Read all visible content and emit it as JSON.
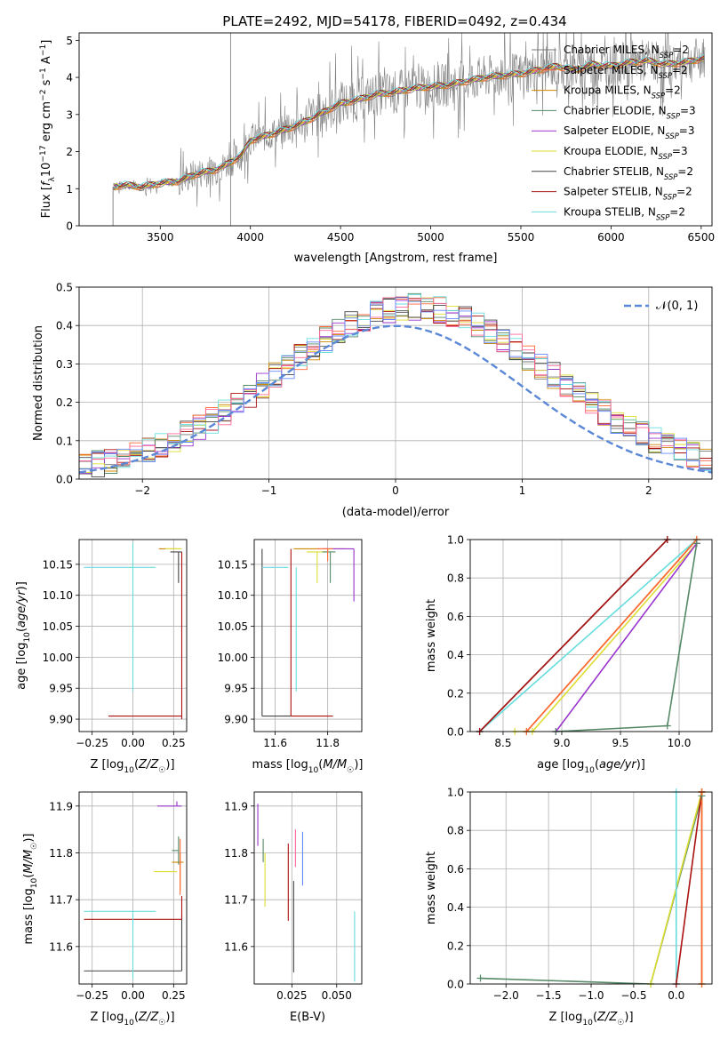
{
  "figure_title": "PLATE=2492, MJD=54178, FIBERID=0492, z=0.434",
  "model_colors": [
    "#777777",
    "#ff6633",
    "#cc8800",
    "#558866",
    "#9933cc",
    "#dddd33",
    "#444444",
    "#aa1111",
    "#66dddd"
  ],
  "chart_data": [
    {
      "id": "spectrum",
      "type": "line",
      "title": "PLATE=2492, MJD=54178, FIBERID=0492, z=0.434",
      "xlabel": "wavelength [Angstrom, rest frame]",
      "ylabel": "Flux [f_λ 10^-17 erg cm^-2 s^-1 A^-1]",
      "xlim": [
        3050,
        6560
      ],
      "ylim": [
        0,
        5.2
      ],
      "xticks": [
        3500,
        4000,
        4500,
        5000,
        5500,
        6000,
        6500
      ],
      "yticks": [
        0,
        1,
        2,
        3,
        4,
        5
      ],
      "grid": false,
      "legend_position": "right",
      "legend": [
        "Chabrier MILES, N_SSP=2",
        "Salpeter MILES, N_SSP=2",
        "Kroupa MILES, N_SSP=2",
        "Chabrier ELODIE, N_SSP=3",
        "Salpeter ELODIE, N_SSP=3",
        "Kroupa ELODIE, N_SSP=3",
        "Chabrier STELIB, N_SSP=2",
        "Salpeter STELIB, N_SSP=2",
        "Kroupa STELIB, N_SSP=2"
      ],
      "continuum": {
        "x": [
          3240,
          3300,
          3400,
          3500,
          3600,
          3700,
          3800,
          3850,
          3950,
          4000,
          4100,
          4200,
          4300,
          4400,
          4500,
          4600,
          4700,
          4800,
          4900,
          5000,
          5100,
          5200,
          5300,
          5400,
          5500,
          5600,
          5700,
          5800,
          5900,
          6000,
          6100,
          6200,
          6300,
          6400,
          6500
        ],
        "y": [
          1.05,
          1.1,
          1.05,
          1.15,
          1.2,
          1.4,
          1.5,
          1.6,
          1.9,
          2.3,
          2.45,
          2.6,
          2.8,
          3.05,
          3.3,
          3.4,
          3.55,
          3.6,
          3.7,
          3.75,
          3.8,
          3.9,
          4.0,
          4.05,
          4.1,
          4.2,
          4.3,
          4.2,
          4.35,
          4.3,
          4.4,
          4.45,
          4.35,
          4.4,
          4.5
        ]
      }
    },
    {
      "id": "residuals",
      "type": "line",
      "xlabel": "(data-model)/error",
      "ylabel": "Normed distribution",
      "xlim": [
        -2.5,
        2.5
      ],
      "ylim": [
        0,
        0.5
      ],
      "xticks": [
        -2,
        -1,
        0,
        1,
        2
      ],
      "yticks": [
        0.0,
        0.1,
        0.2,
        0.3,
        0.4,
        0.5
      ],
      "grid": true,
      "legend_position": "top-right",
      "legend": [
        "𝒩(0, 1)"
      ],
      "reference_curve": "standard normal N(0,1), dashed"
    },
    {
      "id": "age_vs_Z",
      "type": "scatter",
      "xlabel": "Z [log10(Z/Z☉)]",
      "ylabel": "age [log10(age/yr)]",
      "xlim": [
        -0.33,
        0.33
      ],
      "ylim": [
        9.88,
        10.19
      ],
      "xticks": [
        -0.25,
        0.0,
        0.25
      ],
      "yticks": [
        9.9,
        9.95,
        10.0,
        10.05,
        10.1,
        10.15
      ],
      "grid": true,
      "points": [
        {
          "x": 0.3,
          "y": 9.905,
          "xerr": [
            0.45,
            0.0
          ],
          "color": "#aa1111"
        },
        {
          "x": 0.3,
          "y": 10.17,
          "yerr": [
            0.27,
            0.0
          ],
          "color": "#aa1111"
        },
        {
          "x": 0.0,
          "y": 10.145,
          "xerr": [
            0.3,
            0.14
          ],
          "yerr": [
            0.2,
            0.04
          ],
          "color": "#66dddd"
        },
        {
          "x": 0.29,
          "y": 10.175,
          "xerr": [
            0.13,
            0.0
          ],
          "color": "#cc8800"
        },
        {
          "x": 0.28,
          "y": 10.17,
          "xerr": [
            0.05,
            0.02
          ],
          "yerr": [
            0.05,
            0.0
          ],
          "color": "#444444"
        },
        {
          "x": 0.26,
          "y": 10.175,
          "xerr": [
            0.06,
            0.04
          ],
          "color": "#dddd33"
        }
      ]
    },
    {
      "id": "age_vs_mass",
      "type": "scatter",
      "xlabel": "mass [log10(M/M☉)]",
      "ylabel": "",
      "xlim": [
        11.52,
        11.93
      ],
      "ylim": [
        9.88,
        10.19
      ],
      "xticks": [
        11.6,
        11.8
      ],
      "yticks": [
        9.9,
        9.95,
        10.0,
        10.05,
        10.1,
        10.15
      ],
      "grid": true,
      "points": [
        {
          "x": 11.55,
          "y": 9.905,
          "xerr": [
            0.0,
            0.11
          ],
          "yerr": [
            0.0,
            0.27
          ],
          "color": "#444444"
        },
        {
          "x": 11.66,
          "y": 9.905,
          "xerr": [
            0.0,
            0.16
          ],
          "yerr": [
            0.0,
            0.27
          ],
          "color": "#aa1111"
        },
        {
          "x": 11.6,
          "y": 10.145,
          "xerr": [
            0.05,
            0.05
          ],
          "color": "#66dddd"
        },
        {
          "x": 11.68,
          "y": 10.145,
          "yerr": [
            0.2,
            0.0
          ],
          "color": "#66dddd"
        },
        {
          "x": 11.8,
          "y": 10.175,
          "xerr": [
            0.13,
            0.07
          ],
          "yerr": [
            0.0,
            0.0
          ],
          "color": "#cc8800"
        },
        {
          "x": 11.9,
          "y": 10.175,
          "xerr": [
            0.12,
            0.0
          ],
          "yerr": [
            0.085,
            0.0
          ],
          "color": "#9933cc"
        },
        {
          "x": 11.76,
          "y": 10.17,
          "xerr": [
            0.04,
            0.04
          ],
          "yerr": [
            0.05,
            0.0
          ],
          "color": "#dddd33"
        },
        {
          "x": 11.81,
          "y": 10.17,
          "xerr": [
            0.03,
            0.02
          ],
          "yerr": [
            0.05,
            0.0
          ],
          "color": "#558866"
        },
        {
          "x": 11.8,
          "y": 10.175,
          "xerr": [
            0.04,
            0.02
          ],
          "yerr": [
            0.02,
            0.0
          ],
          "color": "#ff6633"
        }
      ]
    },
    {
      "id": "massweight_vs_age",
      "type": "line",
      "xlabel": "age [log10(age/yr)]",
      "ylabel": "mass weight",
      "xlim": [
        8.22,
        10.28
      ],
      "ylim": [
        0.0,
        1.0
      ],
      "xticks": [
        8.5,
        9.0,
        9.5,
        10.0
      ],
      "yticks": [
        0.0,
        0.2,
        0.4,
        0.6,
        0.8,
        1.0
      ],
      "grid": true,
      "series": [
        {
          "x": [
            8.3,
            10.15
          ],
          "y": [
            0.0,
            1.0
          ],
          "color": "#66dddd"
        },
        {
          "x": [
            8.3,
            9.9
          ],
          "y": [
            0.0,
            1.0
          ],
          "color": "#444444"
        },
        {
          "x": [
            8.3,
            9.9
          ],
          "y": [
            0.0,
            1.0
          ],
          "color": "#aa1111"
        },
        {
          "x": [
            8.7,
            10.15
          ],
          "y": [
            0.0,
            1.0
          ],
          "color": "#cc8800"
        },
        {
          "x": [
            8.7,
            10.15
          ],
          "y": [
            0.0,
            1.0
          ],
          "color": "#ff6633"
        },
        {
          "x": [
            8.6,
            8.75,
            10.15
          ],
          "y": [
            0.0,
            0.0,
            0.98
          ],
          "color": "#dddd33"
        },
        {
          "x": [
            8.95,
            10.15
          ],
          "y": [
            0.0,
            0.98
          ],
          "color": "#9933cc"
        },
        {
          "x": [
            8.95,
            9.9,
            10.15
          ],
          "y": [
            0.0,
            0.03,
            0.98
          ],
          "color": "#558866"
        }
      ]
    },
    {
      "id": "mass_vs_Z",
      "type": "scatter",
      "xlabel": "Z [log10(Z/Z☉)]",
      "ylabel": "mass [log10(M/M☉)]",
      "xlim": [
        -0.33,
        0.33
      ],
      "ylim": [
        11.52,
        11.93
      ],
      "xticks": [
        -0.25,
        0.0,
        0.25
      ],
      "yticks": [
        11.6,
        11.7,
        11.8,
        11.9
      ],
      "grid": true,
      "points": [
        {
          "x": 0.3,
          "y": 11.548,
          "xerr": [
            0.6,
            0.0
          ],
          "yerr": [
            0.0,
            0.12
          ],
          "color": "#444444"
        },
        {
          "x": 0.3,
          "y": 11.658,
          "xerr": [
            0.6,
            0.0
          ],
          "yerr": [
            0.0,
            0.05
          ],
          "color": "#aa1111"
        },
        {
          "x": 0.0,
          "y": 11.675,
          "xerr": [
            0.3,
            0.14
          ],
          "yerr": [
            0.145,
            0.0
          ],
          "color": "#66dddd"
        },
        {
          "x": 0.27,
          "y": 11.9,
          "xerr": [
            0.12,
            0.03
          ],
          "yerr": [
            0.0,
            0.01
          ],
          "color": "#9933cc"
        },
        {
          "x": 0.29,
          "y": 11.78,
          "xerr": [
            0.05,
            0.02
          ],
          "yerr": [
            0.06,
            0.02
          ],
          "color": "#cc8800"
        },
        {
          "x": 0.28,
          "y": 11.805,
          "xerr": [
            0.04,
            0.0
          ],
          "yerr": [
            0.03,
            0.03
          ],
          "color": "#558866"
        },
        {
          "x": 0.25,
          "y": 11.76,
          "xerr": [
            0.12,
            0.02
          ],
          "color": "#dddd33"
        },
        {
          "x": 0.29,
          "y": 11.76,
          "yerr": [
            0.05,
            0.07
          ],
          "color": "#ff6633"
        }
      ]
    },
    {
      "id": "mass_vs_EBV",
      "type": "scatter",
      "xlabel": "E(B-V)",
      "ylabel": "",
      "xlim": [
        0.004,
        0.064
      ],
      "ylim": [
        11.52,
        11.93
      ],
      "xticks": [
        0.025,
        0.05
      ],
      "yticks": [
        11.6,
        11.7,
        11.8,
        11.9
      ],
      "grid": true,
      "points": [
        {
          "x": 0.006,
          "y": 11.86,
          "yerr": [
            0.045,
            0.045
          ],
          "color": "#9933cc"
        },
        {
          "x": 0.01,
          "y": 11.76,
          "yerr": [
            0.075,
            0.04
          ],
          "color": "#dddd33"
        },
        {
          "x": 0.009,
          "y": 11.8,
          "yerr": [
            0.02,
            0.03
          ],
          "color": "#558866"
        },
        {
          "x": 0.023,
          "y": 11.74,
          "yerr": [
            0.085,
            0.08
          ],
          "color": "#aa1111"
        },
        {
          "x": 0.026,
          "y": 11.64,
          "yerr": [
            0.095,
            0.1
          ],
          "color": "#444444"
        },
        {
          "x": 0.027,
          "y": 11.81,
          "yerr": [
            0.04,
            0.04
          ],
          "color": "#ff6699"
        },
        {
          "x": 0.031,
          "y": 11.79,
          "yerr": [
            0.06,
            0.055
          ],
          "color": "#6688ff"
        },
        {
          "x": 0.06,
          "y": 11.6,
          "yerr": [
            0.075,
            0.075
          ],
          "color": "#66dddd"
        }
      ]
    },
    {
      "id": "massweight_vs_Z",
      "type": "line",
      "xlabel": "Z [log10(Z/Z☉)]",
      "ylabel": "mass weight",
      "xlim": [
        -2.42,
        0.42
      ],
      "ylim": [
        0.0,
        1.0
      ],
      "xticks": [
        -2.0,
        -1.5,
        -1.0,
        -0.5,
        0.0
      ],
      "yticks": [
        0.0,
        0.2,
        0.4,
        0.6,
        0.8,
        1.0
      ],
      "grid": true,
      "series": [
        {
          "x": [
            -2.3,
            -0.3,
            0.3
          ],
          "y": [
            0.03,
            0.0,
            0.98
          ],
          "color": "#558866"
        },
        {
          "x": [
            -0.3,
            0.3
          ],
          "y": [
            0.0,
            1.0
          ],
          "color": "#dddd33"
        },
        {
          "x": [
            0.0,
            0.0
          ],
          "y": [
            0.0,
            1.0
          ],
          "color": "#66dddd"
        },
        {
          "x": [
            0.0,
            0.3
          ],
          "y": [
            0.0,
            1.0
          ],
          "color": "#aa1111"
        },
        {
          "x": [
            0.3,
            0.3
          ],
          "y": [
            0.0,
            1.0
          ],
          "color": "#cc8800"
        },
        {
          "x": [
            0.3,
            0.3
          ],
          "y": [
            0.0,
            1.0
          ],
          "color": "#ff6633"
        }
      ]
    }
  ]
}
